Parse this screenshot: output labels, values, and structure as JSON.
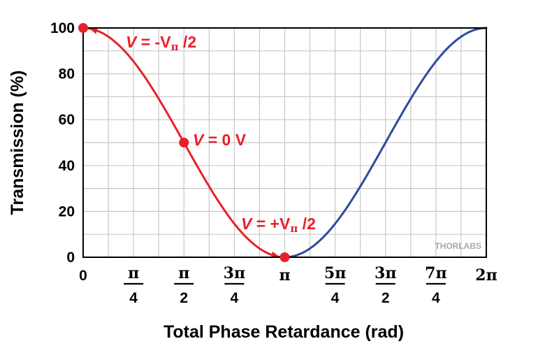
{
  "chart_data": {
    "type": "line",
    "xlabel": "Total Phase Retardance (rad)",
    "ylabel": "Transmission (%)",
    "xlim": [
      0,
      6.2832
    ],
    "ylim": [
      0,
      100
    ],
    "grid": true,
    "x_ticks": [
      {
        "value": 0,
        "num": "0",
        "den": ""
      },
      {
        "value": 0.7854,
        "num": "π",
        "den": "4"
      },
      {
        "value": 1.5708,
        "num": "π",
        "den": "2"
      },
      {
        "value": 2.3562,
        "num": "3π",
        "den": "4"
      },
      {
        "value": 3.1416,
        "num": "π",
        "den": ""
      },
      {
        "value": 3.927,
        "num": "5π",
        "den": "4"
      },
      {
        "value": 4.7124,
        "num": "3π",
        "den": "2"
      },
      {
        "value": 5.4978,
        "num": "7π",
        "den": "4"
      },
      {
        "value": 6.2832,
        "num": "2π",
        "den": ""
      }
    ],
    "y_ticks": [
      "0",
      "20",
      "40",
      "60",
      "80",
      "100"
    ],
    "series": [
      {
        "color": "#e8202a",
        "x": [
          0,
          0.3927,
          0.7854,
          1.1781,
          1.5708,
          1.9635,
          2.3562,
          2.7489,
          3.1416
        ],
        "y": [
          100,
          96.2,
          85.4,
          69.1,
          50,
          30.9,
          14.6,
          3.8,
          0
        ]
      },
      {
        "color": "#2e4a9e",
        "x": [
          3.1416,
          3.5343,
          3.927,
          4.3197,
          4.7124,
          5.1051,
          5.4978,
          5.8905,
          6.2832
        ],
        "y": [
          0,
          3.8,
          14.6,
          30.9,
          50,
          69.1,
          85.4,
          96.2,
          100
        ]
      }
    ],
    "points": [
      {
        "x": 0,
        "y": 100
      },
      {
        "x": 1.5708,
        "y": 50
      },
      {
        "x": 3.1416,
        "y": 0
      }
    ],
    "annotations": [
      {
        "prefix": "V",
        "text": " = -V",
        "sub": "π",
        "suffix": " /2"
      },
      {
        "prefix": "V",
        "text": " = 0 V",
        "sub": "",
        "suffix": ""
      },
      {
        "prefix": "V",
        "text": " = +V",
        "sub": "π",
        "suffix": " /2"
      }
    ]
  },
  "watermark": "THORLABS",
  "colors": {
    "red": "#e8202a",
    "blue": "#2e4a9e",
    "grid": "#c8c8c8"
  }
}
